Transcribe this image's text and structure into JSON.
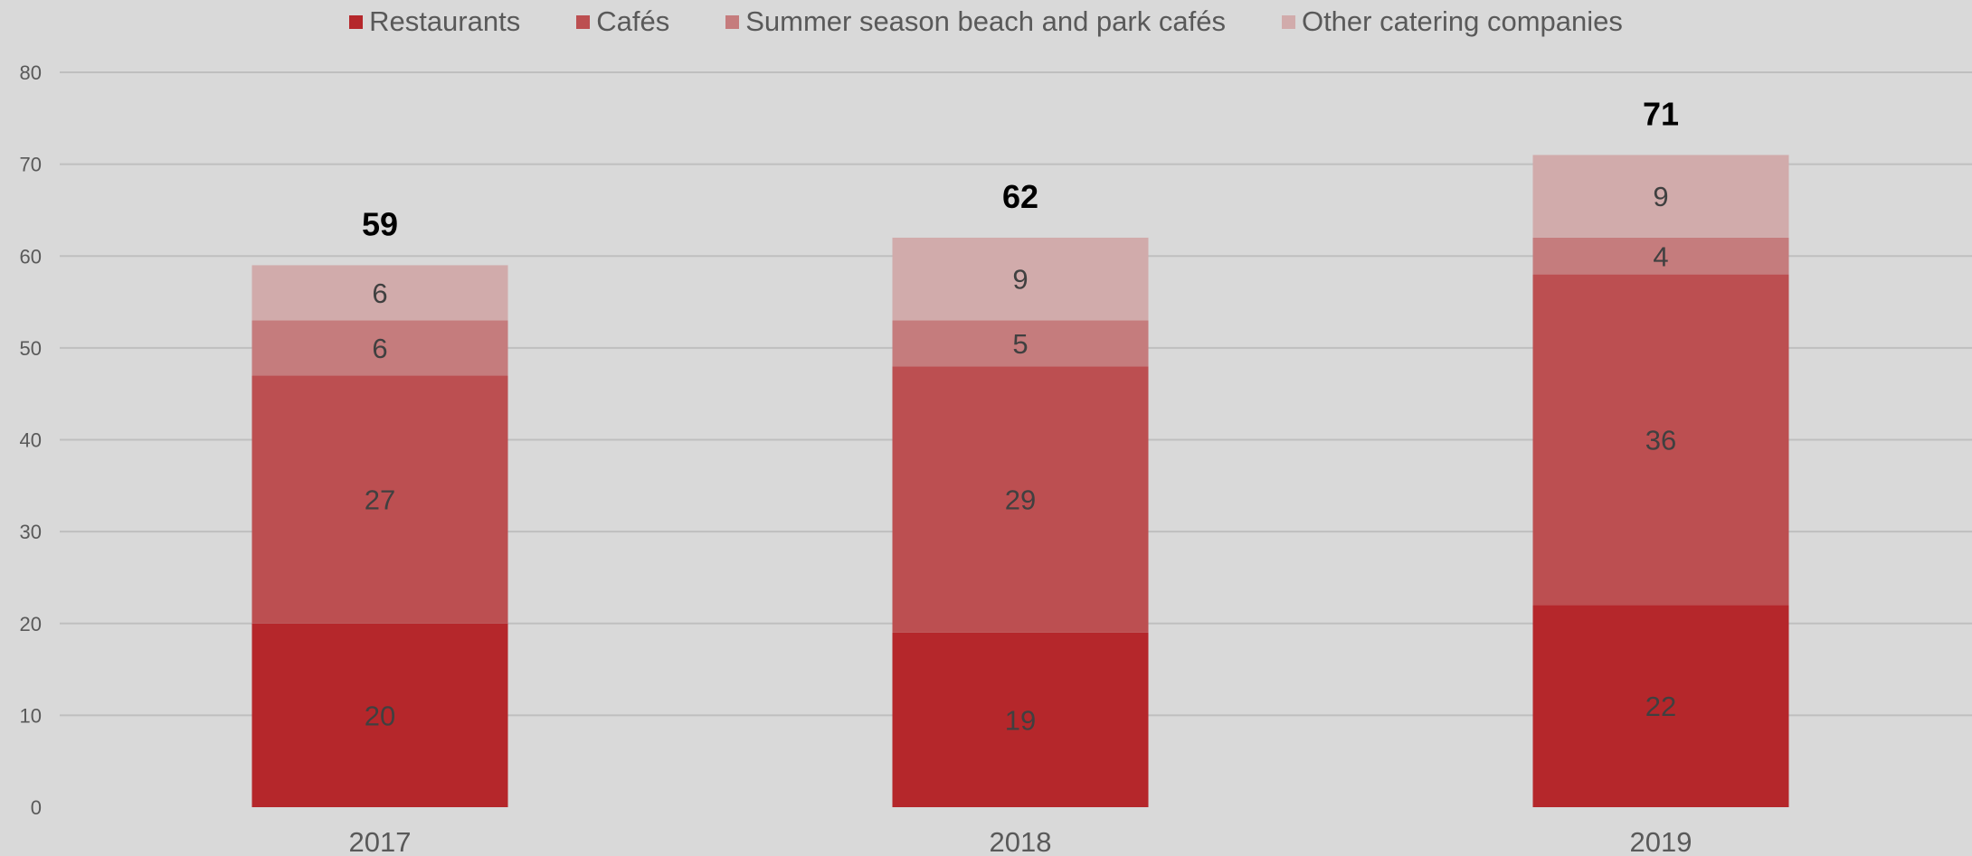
{
  "chart_data": {
    "type": "bar",
    "stacked": true,
    "categories": [
      "2017",
      "2018",
      "2019"
    ],
    "series": [
      {
        "name": "Restaurants",
        "values": [
          20,
          19,
          22
        ],
        "color": "#b5272b"
      },
      {
        "name": "Cafés",
        "values": [
          27,
          29,
          36
        ],
        "color": "#bc4f51"
      },
      {
        "name": "Summer season beach and park cafés",
        "values": [
          6,
          5,
          4
        ],
        "color": "#c57c7d"
      },
      {
        "name": "Other catering companies",
        "values": [
          6,
          9,
          9
        ],
        "color": "#d1abab"
      }
    ],
    "totals": [
      59,
      62,
      71
    ],
    "ylim": [
      0,
      80
    ],
    "yticks": [
      0,
      10,
      20,
      30,
      40,
      50,
      60,
      70,
      80
    ],
    "grid": true,
    "legend_position": "top",
    "title": "",
    "xlabel": "",
    "ylabel": ""
  }
}
